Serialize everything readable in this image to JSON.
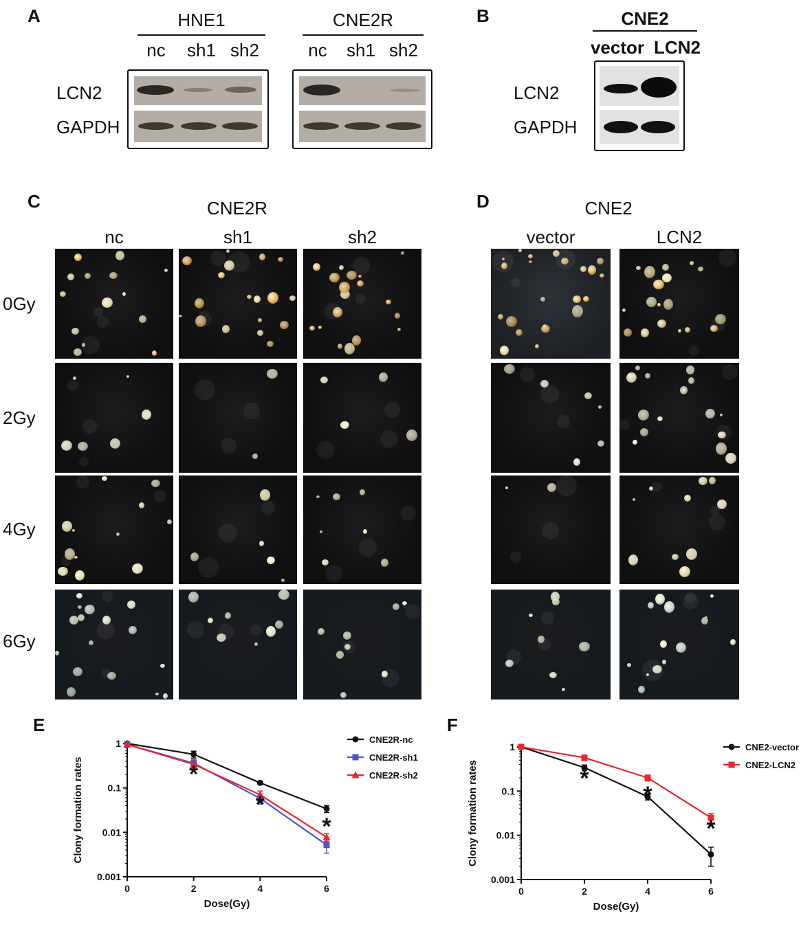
{
  "panels": {
    "a": {
      "letter": "A",
      "group1": {
        "title": "HNE1",
        "lanes": [
          "nc",
          "sh1",
          "sh2"
        ]
      },
      "group2": {
        "title": "CNE2R",
        "lanes": [
          "nc",
          "sh1",
          "sh2"
        ]
      },
      "row_labels": [
        "LCN2",
        "GAPDH"
      ]
    },
    "b": {
      "letter": "B",
      "title": "CNE2",
      "lanes": [
        "vector",
        "LCN2"
      ],
      "row_labels": [
        "LCN2",
        "GAPDH"
      ]
    },
    "c": {
      "letter": "C",
      "title": "CNE2R",
      "columns": [
        "nc",
        "sh1",
        "sh2"
      ]
    },
    "d": {
      "letter": "D",
      "title": "CNE2",
      "columns": [
        "vector",
        "LCN2"
      ]
    },
    "dose_rows": [
      "0Gy",
      "2Gy",
      "4Gy",
      "6Gy"
    ],
    "e": {
      "letter": "E"
    },
    "f": {
      "letter": "F"
    }
  },
  "colors": {
    "black": "#111111",
    "blue": "#4f55c8",
    "red": "#e8262b"
  },
  "chart_data": [
    {
      "type": "line",
      "panel": "E",
      "xlabel": "Dose(Gy)",
      "ylabel": "Clony formation rates",
      "x": [
        0,
        2,
        4,
        6
      ],
      "xlim": [
        0,
        6
      ],
      "ylim": [
        0.001,
        1
      ],
      "yscale": "log",
      "xticks": [
        "0",
        "2",
        "4",
        "6"
      ],
      "yticks": [
        "0.001",
        "0.01",
        "0.1",
        "1"
      ],
      "legend_position": "right",
      "series": [
        {
          "name": "CNE2R-nc",
          "values": [
            1,
            0.57,
            0.13,
            0.034
          ],
          "err": [
            0.03,
            0.1,
            0.01,
            0.006
          ],
          "color": "#111111",
          "marker": "circle"
        },
        {
          "name": "CNE2R-sh1",
          "values": [
            0.95,
            0.36,
            0.058,
            0.0052
          ],
          "err": [
            0.03,
            0.07,
            0.015,
            0.0018
          ],
          "color": "#4f55c8",
          "marker": "square"
        },
        {
          "name": "CNE2R-sh2",
          "values": [
            0.95,
            0.34,
            0.07,
            0.0078
          ],
          "err": [
            0.03,
            0.06,
            0.015,
            0.0015
          ],
          "color": "#e8262b",
          "marker": "triangle"
        }
      ],
      "annotations": [
        {
          "x": 2,
          "text": "*"
        },
        {
          "x": 4,
          "text": "*"
        },
        {
          "x": 6,
          "text": "*"
        }
      ]
    },
    {
      "type": "line",
      "panel": "F",
      "xlabel": "Dose(Gy)",
      "ylabel": "Clony formation rates",
      "x": [
        0,
        2,
        4,
        6
      ],
      "xlim": [
        0,
        6
      ],
      "ylim": [
        0.001,
        1
      ],
      "yscale": "log",
      "xticks": [
        "0",
        "2",
        "4",
        "6"
      ],
      "yticks": [
        "0.001",
        "0.01",
        "0.1",
        "1"
      ],
      "legend_position": "right",
      "series": [
        {
          "name": "CNE2-vector",
          "values": [
            1,
            0.34,
            0.075,
            0.0037
          ],
          "err": [
            0.03,
            0.05,
            0.012,
            0.0017
          ],
          "color": "#111111",
          "marker": "circle"
        },
        {
          "name": "CNE2-LCN2",
          "values": [
            1,
            0.57,
            0.2,
            0.025
          ],
          "err": [
            0.03,
            0.08,
            0.03,
            0.006
          ],
          "color": "#e8262b",
          "marker": "square"
        }
      ],
      "annotations": [
        {
          "x": 2,
          "text": "*"
        },
        {
          "x": 4,
          "text": "*"
        },
        {
          "x": 6,
          "text": "*"
        }
      ]
    }
  ]
}
